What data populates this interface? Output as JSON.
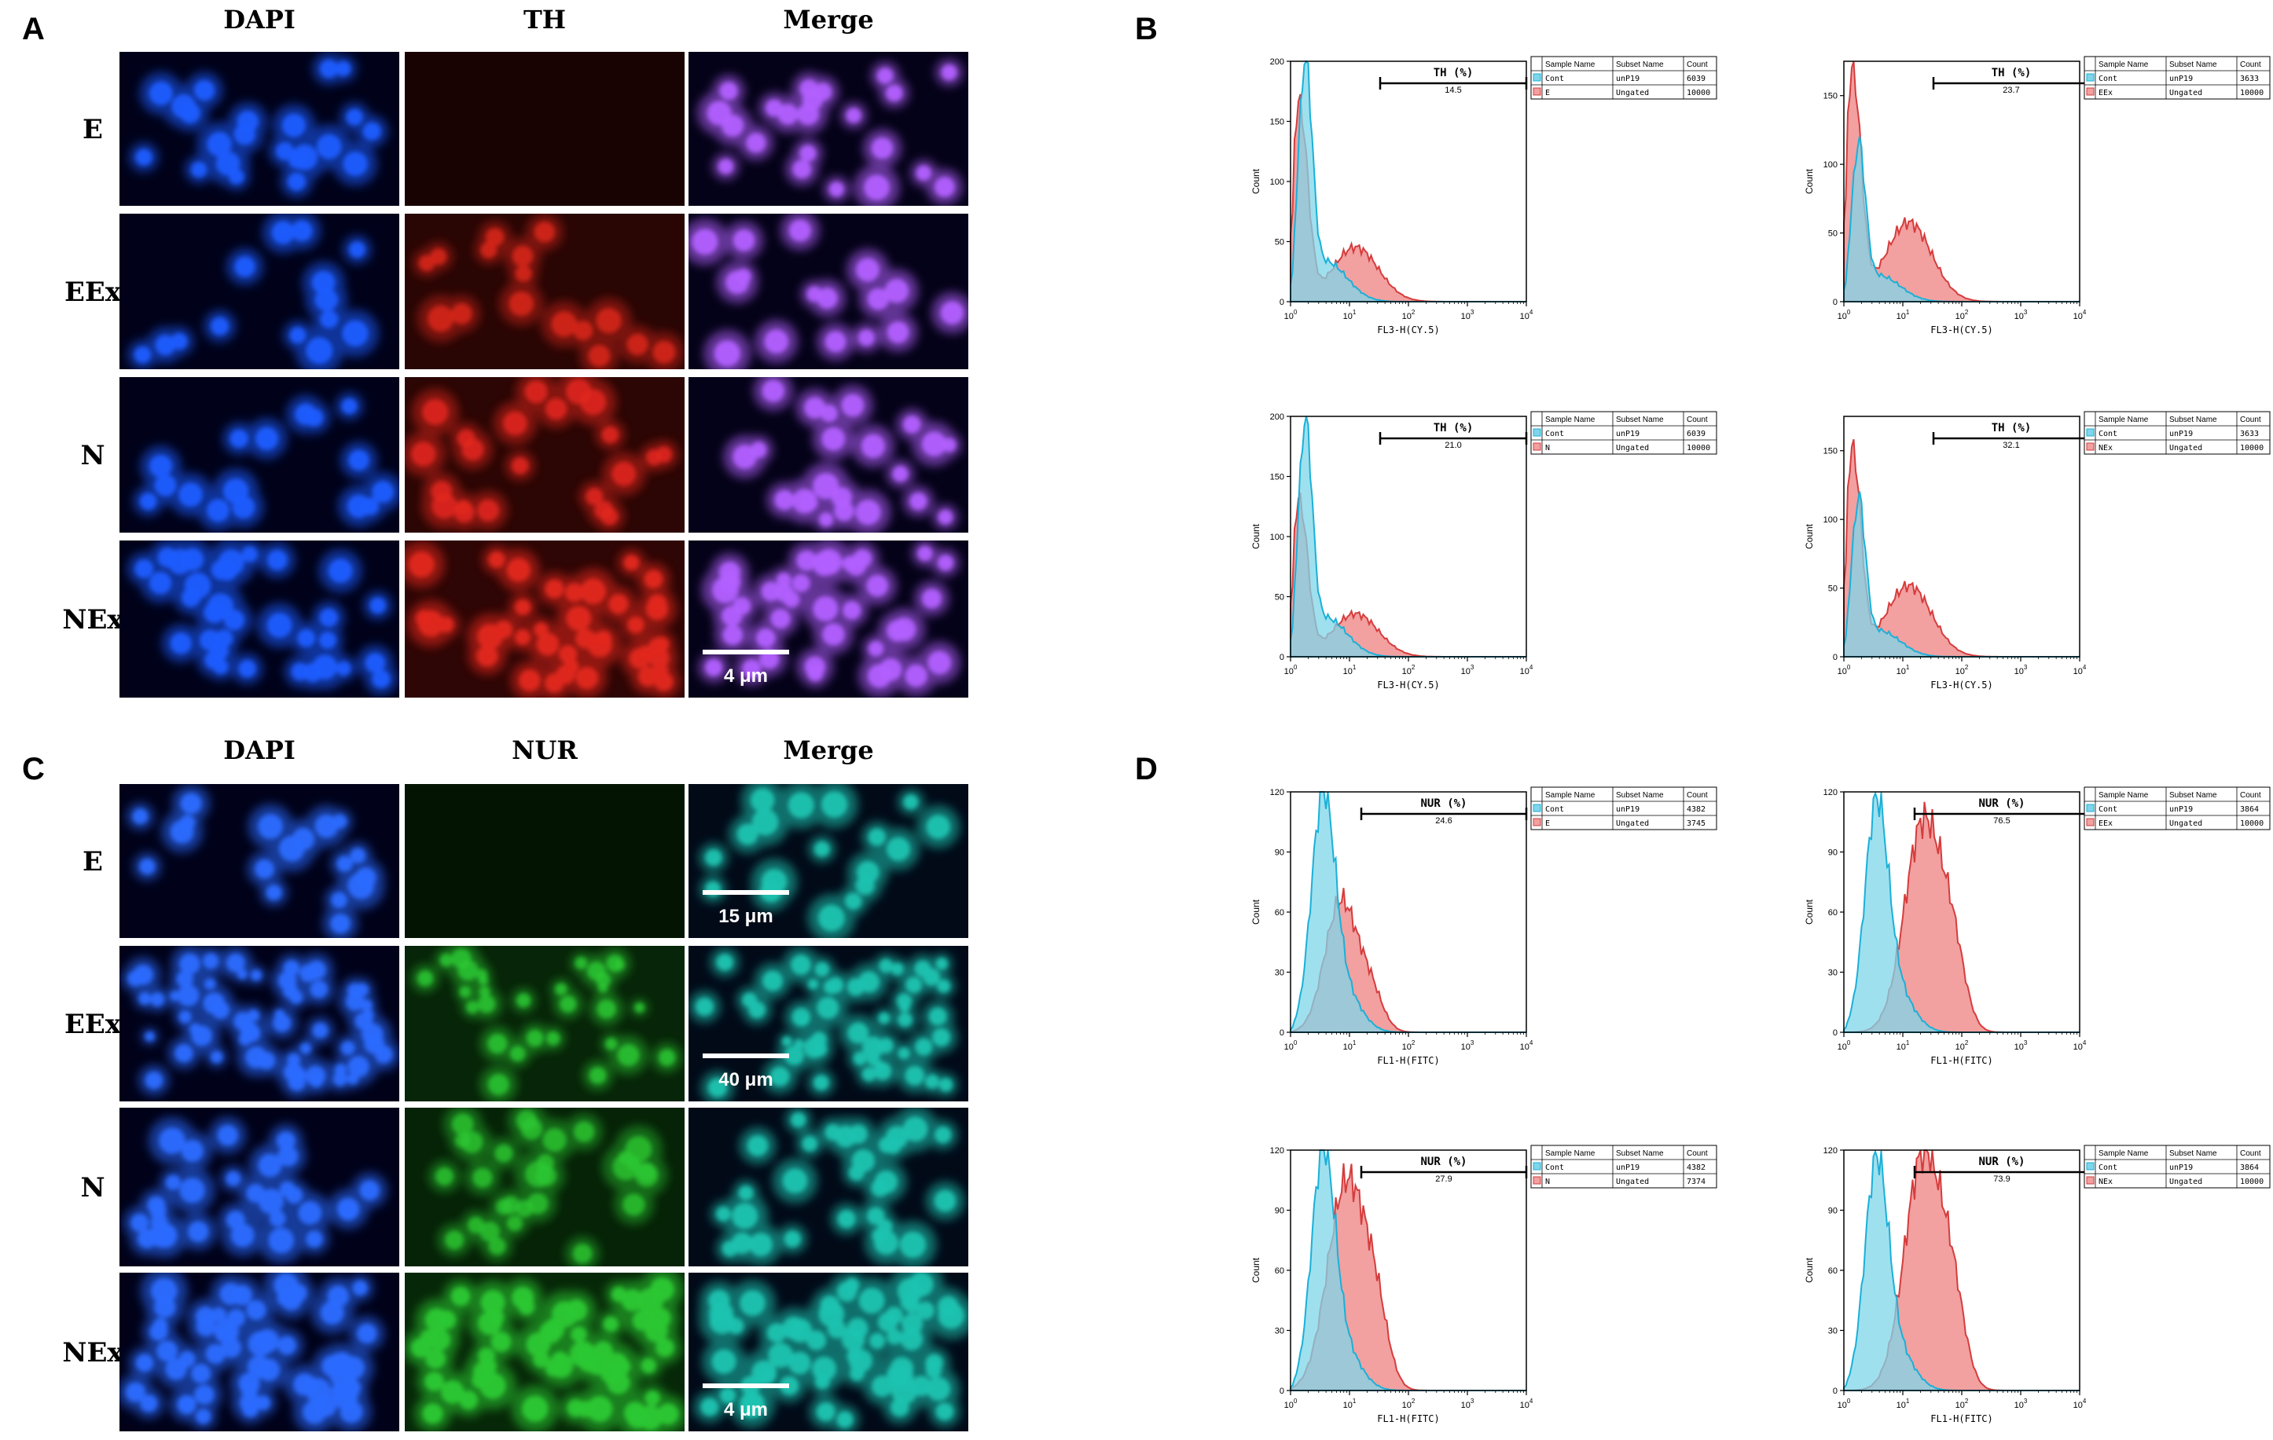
{
  "panels": {
    "A": {
      "letter": "A",
      "columns": [
        "DAPI",
        "TH",
        "Merge"
      ],
      "rows": [
        "E",
        "EEx",
        "N",
        "NEx"
      ],
      "scale_bars": [
        {
          "row": 3,
          "col": 2,
          "label": "4 μm"
        }
      ]
    },
    "C": {
      "letter": "C",
      "columns": [
        "DAPI",
        "NUR",
        "Merge"
      ],
      "rows": [
        "E",
        "EEx",
        "N",
        "NEx"
      ],
      "scale_bars": [
        {
          "row": 0,
          "col": 2,
          "label": "15 μm"
        },
        {
          "row": 1,
          "col": 2,
          "label": "40 μm"
        },
        {
          "row": 3,
          "col": 2,
          "label": "4 μm"
        }
      ]
    },
    "B": {
      "letter": "B"
    },
    "D": {
      "letter": "D"
    }
  },
  "colors": {
    "control_fill": "#7fd6ea",
    "control_line": "#1ab0d8",
    "sample_fill": "#f2a0a0",
    "sample_line": "#d63c3c",
    "overlap": "#9aa9c4"
  },
  "legend_headers": [
    "Sample Name",
    "Subset Name",
    "Count"
  ],
  "histograms": [
    {
      "id": "B-tl",
      "panel": "B",
      "gate_label": "TH (%)",
      "gate_value": "14.5",
      "y_max": 200,
      "y_ticks": [
        0,
        50,
        100,
        150,
        200
      ],
      "x_label": "FL3-H(CY.5)",
      "control_peak": 185,
      "sample_peak": 162,
      "legend": [
        [
          "Cont",
          "unP19",
          "6039"
        ],
        [
          "E",
          "Ungated",
          "10000"
        ]
      ]
    },
    {
      "id": "B-tr",
      "panel": "B",
      "gate_label": "TH (%)",
      "gate_value": "23.7",
      "y_max": 175,
      "y_ticks": [
        0,
        50,
        100,
        150
      ],
      "x_label": "FL3-H(CY.5)",
      "control_peak": 105,
      "sample_peak": 165,
      "legend": [
        [
          "Cont",
          "unP19",
          "3633"
        ],
        [
          "EEx",
          "Ungated",
          "10000"
        ]
      ]
    },
    {
      "id": "B-bl",
      "panel": "B",
      "gate_label": "TH (%)",
      "gate_value": "21.0",
      "y_max": 200,
      "y_ticks": [
        0,
        50,
        100,
        150,
        200
      ],
      "x_label": "FL3-H(CY.5)",
      "control_peak": 180,
      "sample_peak": 128,
      "legend": [
        [
          "Cont",
          "unP19",
          "6039"
        ],
        [
          "N",
          "Ungated",
          "10000"
        ]
      ]
    },
    {
      "id": "B-br",
      "panel": "B",
      "gate_label": "TH (%)",
      "gate_value": "32.1",
      "y_max": 175,
      "y_ticks": [
        0,
        50,
        100,
        150
      ],
      "x_label": "FL3-H(CY.5)",
      "control_peak": 105,
      "sample_peak": 148,
      "legend": [
        [
          "Cont",
          "unP19",
          "3633"
        ],
        [
          "NEx",
          "Ungated",
          "10000"
        ]
      ]
    },
    {
      "id": "D-tl",
      "panel": "D",
      "gate_label": "NUR (%)",
      "gate_value": "24.6",
      "y_max": 120,
      "y_ticks": [
        0,
        30,
        60,
        90,
        120
      ],
      "x_label": "FL1-H(FITC)",
      "control_peak": 112,
      "sample_peak": 65,
      "legend": [
        [
          "Cont",
          "unP19",
          "4382"
        ],
        [
          "E",
          "Ungated",
          "3745"
        ]
      ]
    },
    {
      "id": "D-tr",
      "panel": "D",
      "gate_label": "NUR (%)",
      "gate_value": "76.5",
      "y_max": 120,
      "y_ticks": [
        0,
        30,
        60,
        90,
        120
      ],
      "x_label": "FL1-H(FITC)",
      "control_peak": 108,
      "sample_peak": 105,
      "legend": [
        [
          "Cont",
          "unP19",
          "3864"
        ],
        [
          "EEx",
          "Ungated",
          "10000"
        ]
      ]
    },
    {
      "id": "D-bl",
      "panel": "D",
      "gate_label": "NUR (%)",
      "gate_value": "27.9",
      "y_max": 120,
      "y_ticks": [
        0,
        30,
        60,
        90,
        120
      ],
      "x_label": "FL1-H(FITC)",
      "control_peak": 113,
      "sample_peak": 104,
      "legend": [
        [
          "Cont",
          "unP19",
          "4382"
        ],
        [
          "N",
          "Ungated",
          "7374"
        ]
      ]
    },
    {
      "id": "D-br",
      "panel": "D",
      "gate_label": "NUR (%)",
      "gate_value": "73.9",
      "y_max": 120,
      "y_ticks": [
        0,
        30,
        60,
        90,
        120
      ],
      "x_label": "FL1-H(FITC)",
      "control_peak": 108,
      "sample_peak": 118,
      "legend": [
        [
          "Cont",
          "unP19",
          "3864"
        ],
        [
          "NEx",
          "Ungated",
          "10000"
        ]
      ]
    }
  ]
}
